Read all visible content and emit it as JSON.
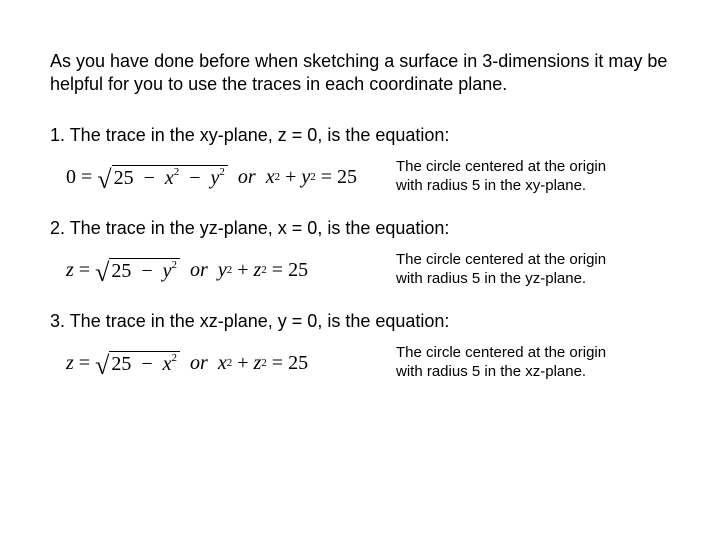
{
  "intro": "As you have done before when sketching a surface in 3-dimensions it may be helpful for you to use the traces in each coordinate plane.",
  "items": [
    {
      "heading": "1. The trace in the xy-plane, z = 0, is the equation:",
      "eq_lhs": "0",
      "rad_const": "25",
      "rad_t1": "x",
      "rad_t2": "y",
      "or": "or",
      "alt_a": "x",
      "alt_b": "y",
      "alt_rhs": "25",
      "desc": "The circle centered at the origin with radius 5 in the xy-plane."
    },
    {
      "heading": "2. The trace in the yz-plane, x = 0, is the equation:",
      "eq_lhs": "z",
      "rad_const": "25",
      "rad_t1": "y",
      "rad_t2": "",
      "or": "or",
      "alt_a": "y",
      "alt_b": "z",
      "alt_rhs": "25",
      "desc": "The circle centered at the origin with radius 5 in the yz-plane."
    },
    {
      "heading": "3. The trace in the xz-plane, y = 0, is the equation:",
      "eq_lhs": "z",
      "rad_const": "25",
      "rad_t1": "x",
      "rad_t2": "",
      "or": "or",
      "alt_a": "x",
      "alt_b": "z",
      "alt_rhs": "25",
      "desc": "The circle centered at the origin with radius 5 in the xz-plane."
    }
  ]
}
